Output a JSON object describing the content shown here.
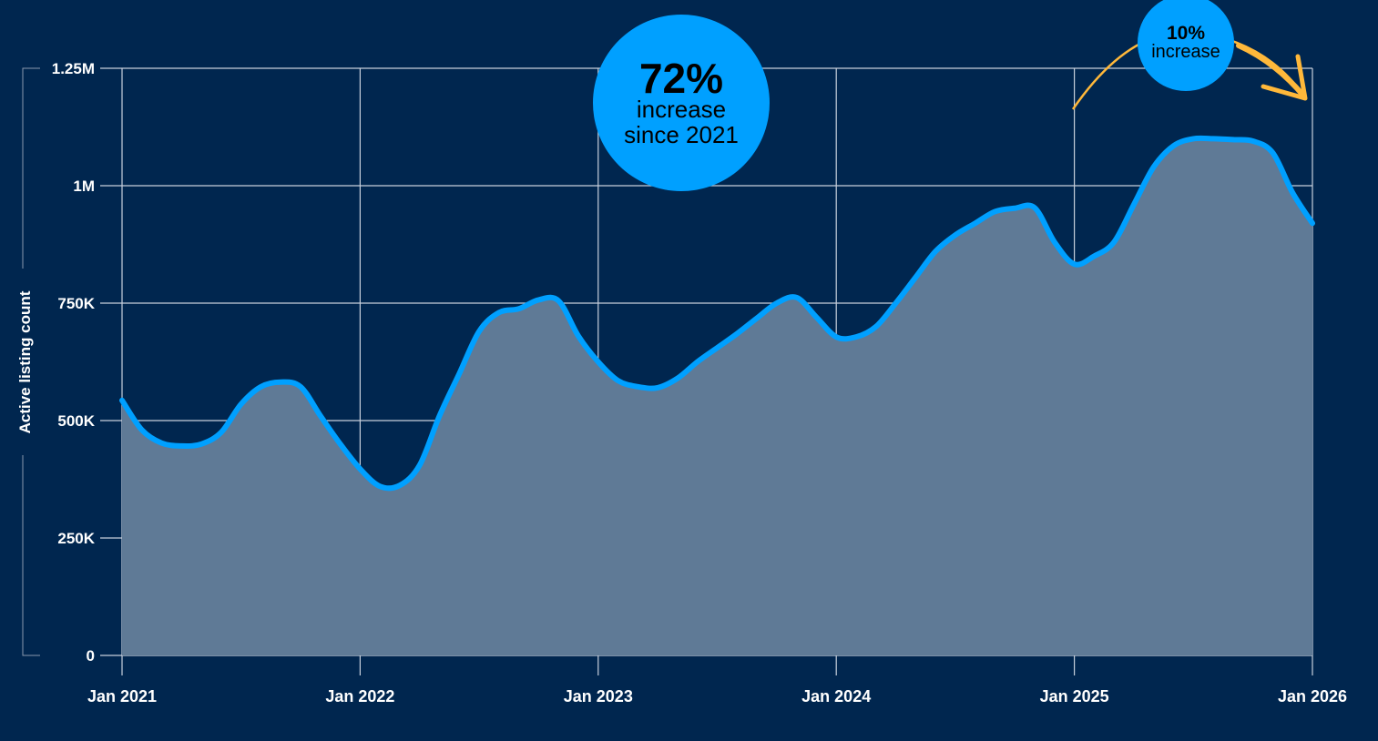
{
  "colors": {
    "background": "#00264f",
    "line": "#00a0ff",
    "fill": "#5f7a96",
    "grid": "#c8d0dc",
    "arrow": "#ffb83a",
    "bubble": "#00a0ff",
    "text": "#ffffff"
  },
  "annotations": [
    {
      "big": "72%",
      "line1": "increase",
      "line2": "since 2021"
    },
    {
      "big": "10%",
      "line1": "increase"
    }
  ],
  "chart_data": {
    "type": "area",
    "title": "",
    "xlabel": "",
    "ylabel": "Active listing count",
    "ylim": [
      0,
      1250000
    ],
    "xlim": [
      "2021-01",
      "2026-01"
    ],
    "grid": true,
    "yticks": [
      0,
      250000,
      500000,
      750000,
      1000000,
      1250000
    ],
    "ytick_labels": [
      "0",
      "250K",
      "500K",
      "750K",
      "1M",
      "1.25M"
    ],
    "xtick_labels": [
      "Jan 2021",
      "Jan 2022",
      "Jan 2023",
      "Jan 2024",
      "Jan 2025",
      "Jan 2026"
    ],
    "start": "2021-01",
    "frequency": "monthly",
    "values": [
      543000,
      480000,
      452000,
      446000,
      450000,
      475000,
      535000,
      572000,
      582000,
      572000,
      510000,
      450000,
      397000,
      360000,
      362000,
      405000,
      510000,
      600000,
      690000,
      730000,
      738000,
      757000,
      755000,
      680000,
      625000,
      585000,
      572000,
      570000,
      590000,
      625000,
      655000,
      685000,
      718000,
      750000,
      762000,
      720000,
      678000,
      678000,
      700000,
      750000,
      805000,
      860000,
      895000,
      920000,
      945000,
      952000,
      953000,
      880000,
      833000,
      850000,
      880000,
      960000,
      1040000,
      1085000,
      1100000,
      1100000,
      1098000,
      1095000,
      1070000,
      985000,
      920000
    ]
  }
}
